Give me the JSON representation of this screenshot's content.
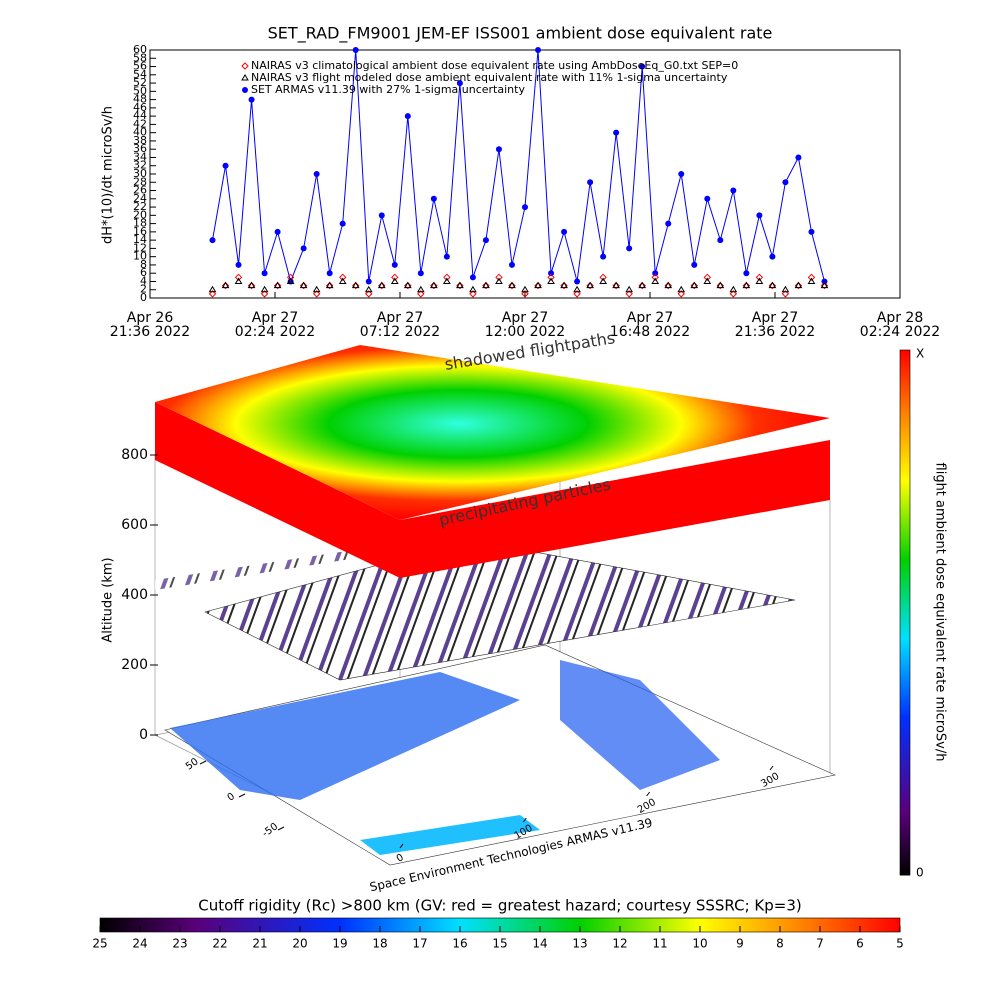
{
  "chart_data": [
    {
      "type": "line",
      "title": "SET_RAD_FM9001  JEM-EF ISS001 ambient dose equivalent rate",
      "ylabel": "dH*(10)/dt microSv/h",
      "xlim": [
        "2022-04-26T21:36",
        "2022-04-28T02:24"
      ],
      "xticks": [
        {
          "value": "2022-04-26T21:36",
          "label": [
            "Apr 26",
            "21:36 2022"
          ]
        },
        {
          "value": "2022-04-27T02:24",
          "label": [
            "Apr 27",
            "02:24 2022"
          ]
        },
        {
          "value": "2022-04-27T07:12",
          "label": [
            "Apr 27",
            "07:12 2022"
          ]
        },
        {
          "value": "2022-04-27T12:00",
          "label": [
            "Apr 27",
            "12:00 2022"
          ]
        },
        {
          "value": "2022-04-27T16:48",
          "label": [
            "Apr 27",
            "16:48 2022"
          ]
        },
        {
          "value": "2022-04-27T21:36",
          "label": [
            "Apr 27",
            "21:36 2022"
          ]
        },
        {
          "value": "2022-04-28T02:24",
          "label": [
            "Apr 28",
            "02:24 2022"
          ]
        }
      ],
      "ylim": [
        0,
        60
      ],
      "yticks": [
        0,
        2,
        4,
        6,
        8,
        10,
        12,
        14,
        16,
        18,
        20,
        22,
        24,
        26,
        28,
        30,
        32,
        34,
        36,
        38,
        40,
        42,
        44,
        46,
        48,
        50,
        52,
        54,
        56,
        58,
        60
      ],
      "x": [
        "2022-04-27T00:00",
        "2022-04-27T00:30",
        "2022-04-27T01:00",
        "2022-04-27T01:30",
        "2022-04-27T02:00",
        "2022-04-27T02:30",
        "2022-04-27T03:00",
        "2022-04-27T03:30",
        "2022-04-27T04:00",
        "2022-04-27T04:30",
        "2022-04-27T05:00",
        "2022-04-27T05:30",
        "2022-04-27T06:00",
        "2022-04-27T06:30",
        "2022-04-27T07:00",
        "2022-04-27T07:30",
        "2022-04-27T08:00",
        "2022-04-27T08:30",
        "2022-04-27T09:00",
        "2022-04-27T09:30",
        "2022-04-27T10:00",
        "2022-04-27T10:30",
        "2022-04-27T11:00",
        "2022-04-27T11:30",
        "2022-04-27T12:00",
        "2022-04-27T12:30",
        "2022-04-27T13:00",
        "2022-04-27T13:30",
        "2022-04-27T14:00",
        "2022-04-27T14:30",
        "2022-04-27T15:00",
        "2022-04-27T15:30",
        "2022-04-27T16:00",
        "2022-04-27T16:30",
        "2022-04-27T17:00",
        "2022-04-27T17:30",
        "2022-04-27T18:00",
        "2022-04-27T18:30",
        "2022-04-27T19:00",
        "2022-04-27T19:30",
        "2022-04-27T20:00",
        "2022-04-27T20:30",
        "2022-04-27T21:00",
        "2022-04-27T21:30",
        "2022-04-27T22:00",
        "2022-04-27T22:30",
        "2022-04-27T23:00",
        "2022-04-27T23:30"
      ],
      "series": [
        {
          "name": "NAIRAS v3 climatological ambient dose equivalent rate using AmbDoseEq_G0.txt SEP=0",
          "color": "#ff0000",
          "marker": "diamond",
          "values": [
            1,
            3,
            5,
            3,
            1,
            3,
            5,
            3,
            1,
            3,
            5,
            3,
            1,
            3,
            5,
            3,
            1,
            3,
            5,
            3,
            1,
            3,
            5,
            3,
            1,
            3,
            5,
            3,
            1,
            3,
            5,
            3,
            1,
            3,
            5,
            3,
            1,
            3,
            5,
            3,
            1,
            3,
            5,
            3,
            1,
            3,
            5,
            3
          ]
        },
        {
          "name": "NAIRAS v3 flight modeled dose ambient equivalent rate with 11% 1-sigma uncertainty",
          "color": "#000000",
          "marker": "triangle",
          "values": [
            2,
            3,
            4,
            3,
            2,
            3,
            4,
            3,
            2,
            3,
            4,
            3,
            2,
            3,
            4,
            3,
            2,
            3,
            4,
            3,
            2,
            3,
            4,
            3,
            2,
            3,
            4,
            3,
            2,
            3,
            4,
            3,
            2,
            3,
            4,
            3,
            2,
            3,
            4,
            3,
            2,
            3,
            4,
            3,
            2,
            3,
            4,
            3
          ]
        },
        {
          "name": "SET ARMAS v11.39 with 27% 1-sigma uncertainty",
          "color": "#0000ff",
          "marker": "circle",
          "values": [
            14,
            32,
            8,
            48,
            6,
            16,
            4,
            12,
            30,
            6,
            18,
            60,
            4,
            20,
            8,
            44,
            6,
            24,
            10,
            52,
            5,
            14,
            36,
            8,
            22,
            60,
            6,
            16,
            4,
            28,
            10,
            40,
            12,
            56,
            6,
            18,
            30,
            8,
            24,
            14,
            26,
            6,
            20,
            10,
            28,
            34,
            16,
            4
          ]
        }
      ],
      "legend": "upper left"
    },
    {
      "type": "surface3d",
      "zlabel": "Altitude (km)",
      "zticks": [
        0,
        200,
        400,
        600,
        800
      ],
      "xticks": [
        0,
        100,
        200,
        300
      ],
      "yticks": [
        -50,
        0,
        50
      ],
      "annotations": [
        "shadowed flightpaths",
        "precipitating particles"
      ],
      "credit": "Space Environment Technologies ARMAS v11.39"
    },
    {
      "type": "colorbar",
      "orientation": "vertical",
      "label": "flight ambient dose equivalent rate microSv/h",
      "ticks": [
        0
      ],
      "max_label": "X"
    },
    {
      "type": "colorbar",
      "orientation": "horizontal",
      "title": "Cutoff rigidity (Rc) >800 km (GV: red = greatest hazard; courtesy SSSRC; Kp=3)",
      "xlim": [
        25,
        5
      ],
      "xticks": [
        25,
        24,
        23,
        22,
        21,
        20,
        19,
        18,
        17,
        16,
        15,
        14,
        13,
        12,
        11,
        10,
        9,
        8,
        7,
        6,
        5
      ]
    }
  ]
}
